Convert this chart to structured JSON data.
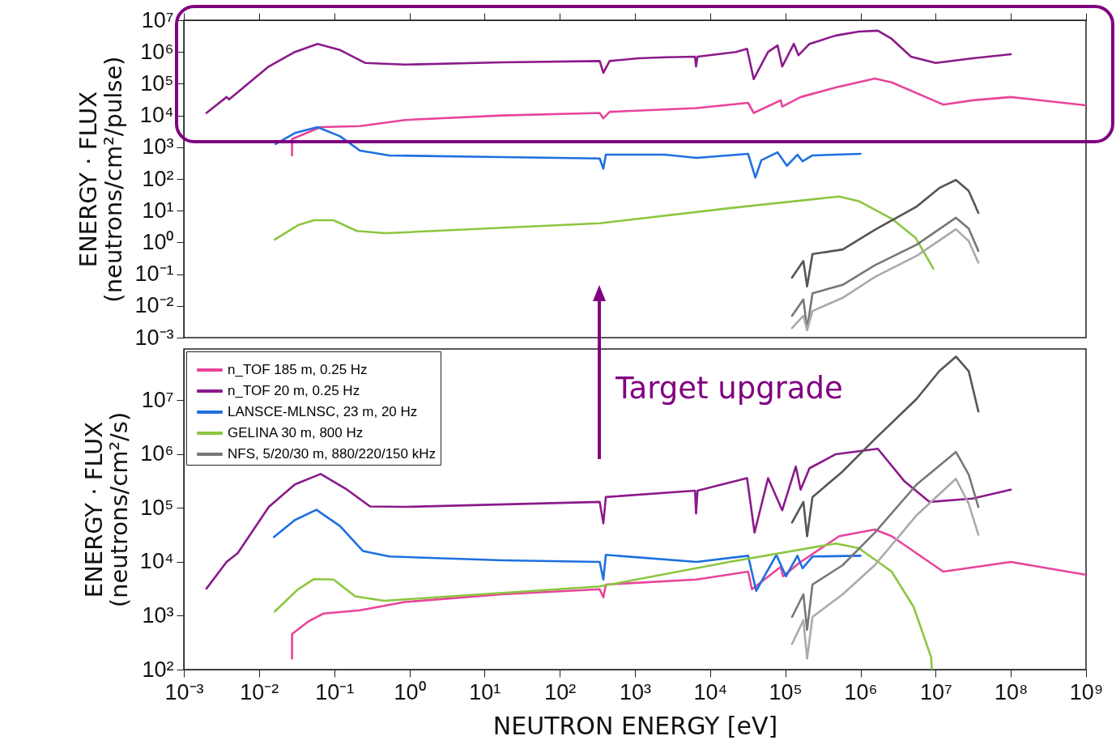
{
  "chart_data": [
    {
      "type": "line",
      "ylabel": "ENERGY · FLUX\n(neutrons/cm²/pulse)",
      "log": "xy",
      "tick_labels": "y",
      "xlim": [
        0.001,
        1000000000
      ],
      "ylim": [
        0.001,
        10000000
      ],
      "xticks": [
        {
          "value": 0.001,
          "label": null
        },
        {
          "value": 0.01,
          "label": null
        },
        {
          "value": 0.1,
          "label": null
        },
        {
          "value": 1,
          "label": null
        },
        {
          "value": 10,
          "label": null
        },
        {
          "value": 100,
          "label": null
        },
        {
          "value": 1000,
          "label": null
        },
        {
          "value": 10000,
          "label": null
        },
        {
          "value": 100000,
          "label": null
        },
        {
          "value": 1000000,
          "label": null
        },
        {
          "value": 10000000,
          "label": null
        },
        {
          "value": 100000000,
          "label": null
        },
        {
          "value": 1000000000,
          "label": null
        }
      ],
      "yticks": [
        {
          "value": 0.001,
          "label": "10⁻³"
        },
        {
          "value": 0.01,
          "label": "10⁻²"
        },
        {
          "value": 0.1,
          "label": "10⁻¹"
        },
        {
          "value": 1,
          "label": "10⁰"
        },
        {
          "value": 10,
          "label": "10¹"
        },
        {
          "value": 100,
          "label": "10²"
        },
        {
          "value": 1000,
          "label": "10³"
        },
        {
          "value": 10000,
          "label": "10⁴"
        },
        {
          "value": 100000,
          "label": "10⁵"
        },
        {
          "value": 1000000,
          "label": "10⁶"
        },
        {
          "value": 10000000,
          "label": "10⁷"
        }
      ],
      "series": [
        {
          "color": "#e8449a",
          "x": [
            0.0275,
            0.0275,
            0.066,
            0.22,
            0.87,
            17,
            340,
            380,
            460,
            6600,
            32000,
            38000,
            87000,
            91000,
            160000,
            470000,
            1550000,
            2600000,
            12600000,
            31000000,
            100000000,
            980000000
          ],
          "values": [
            550,
            1800,
            4300,
            4600,
            7200,
            10000,
            12000,
            8100,
            13000,
            17000,
            25000,
            12000,
            30000,
            19000,
            38000,
            76000,
            145000,
            110000,
            22000,
            30000,
            38000,
            21000
          ]
        },
        {
          "color": "#8b1a8b",
          "x": [
            0.002,
            0.0037,
            0.004,
            0.0052,
            0.0135,
            0.03,
            0.06,
            0.12,
            0.26,
            0.87,
            17,
            340,
            380,
            460,
            1100,
            2500,
            6300,
            6500,
            6800,
            22000,
            31000,
            38000,
            59000,
            79000,
            91000,
            130000,
            150000,
            210000,
            470000,
            950000,
            1700000,
            2600000,
            4700000,
            10000000,
            31000000,
            100000000
          ],
          "values": [
            12000,
            38000,
            32000,
            54000,
            350000,
            1000000,
            1800000,
            1150000,
            450000,
            400000,
            470000,
            520000,
            220000,
            520000,
            630000,
            680000,
            710000,
            350000,
            710000,
            1000000,
            1260000,
            140000,
            1000000,
            1600000,
            350000,
            1800000,
            790000,
            1800000,
            3300000,
            4400000,
            4700000,
            2600000,
            710000,
            450000,
            630000,
            850000
          ]
        },
        {
          "color": "#1e6fe0",
          "x": [
            0.0166,
            0.03,
            0.06,
            0.12,
            0.22,
            0.54,
            17,
            340,
            380,
            410,
            2500,
            6600,
            32000,
            40000,
            48000,
            79000,
            105000,
            145000,
            170000,
            230000,
            1000000
          ],
          "values": [
            1260,
            2800,
            4300,
            2200,
            780,
            550,
            490,
            440,
            210,
            580,
            580,
            460,
            620,
            110,
            390,
            690,
            260,
            580,
            360,
            550,
            620
          ]
        },
        {
          "color": "#8cc63f",
          "x": [
            0.0162,
            0.033,
            0.054,
            0.098,
            0.2,
            0.48,
            340,
            18000,
            520000,
            950000,
            2600000,
            5400000,
            9300000
          ],
          "values": [
            1.23,
            3.5,
            5,
            5,
            2.3,
            1.95,
            4,
            12,
            28,
            20,
            5.6,
            1.4,
            0.15
          ]
        },
        {
          "color": "#555555",
          "x": [
            123000,
            174000,
            195000,
            230000,
            580000,
            1550000,
            5600000,
            11200000,
            18600000,
            27500000,
            37000000
          ],
          "values": [
            0.078,
            0.26,
            0.041,
            0.43,
            0.6,
            2.5,
            13.5,
            52,
            93,
            42,
            8.5
          ]
        },
        {
          "color": "#777777",
          "x": [
            123000,
            174000,
            195000,
            230000,
            580000,
            1550000,
            5600000,
            18600000,
            27500000,
            37000000
          ],
          "values": [
            0.0049,
            0.016,
            0.0019,
            0.025,
            0.046,
            0.19,
            0.85,
            6,
            2.75,
            0.54
          ]
        },
        {
          "color": "#aaaaaa",
          "x": [
            123000,
            174000,
            195000,
            230000,
            580000,
            1550000,
            5600000,
            18600000,
            27500000,
            37000000
          ],
          "values": [
            0.002,
            0.0049,
            0.0017,
            0.0069,
            0.018,
            0.081,
            0.38,
            2.6,
            1.1,
            0.23
          ]
        }
      ]
    },
    {
      "type": "line",
      "ylabel": "ENERGY · FLUX\n(neutrons/cm²/s)",
      "xlabel": "NEUTRON ENERGY [eV]",
      "log": "xy",
      "legend": "top left",
      "annotations": [
        "Target upgrade"
      ],
      "xlim": [
        0.001,
        1000000000
      ],
      "ylim": [
        100,
        90000000
      ],
      "xticks": [
        {
          "value": 0.001,
          "label": "10⁻³"
        },
        {
          "value": 0.01,
          "label": "10⁻²"
        },
        {
          "value": 0.1,
          "label": "10⁻¹"
        },
        {
          "value": 1,
          "label": "10⁰"
        },
        {
          "value": 10,
          "label": "10¹"
        },
        {
          "value": 100,
          "label": "10²"
        },
        {
          "value": 1000,
          "label": "10³"
        },
        {
          "value": 10000,
          "label": "10⁴"
        },
        {
          "value": 100000,
          "label": "10⁵"
        },
        {
          "value": 1000000,
          "label": "10⁶"
        },
        {
          "value": 10000000,
          "label": "10⁷"
        },
        {
          "value": 100000000,
          "label": "10⁸"
        },
        {
          "value": 1000000000,
          "label": "10⁹"
        }
      ],
      "yticks": [
        {
          "value": 100,
          "label": "10²"
        },
        {
          "value": 1000,
          "label": "10³"
        },
        {
          "value": 10000,
          "label": "10⁴"
        },
        {
          "value": 100000,
          "label": "10⁵"
        },
        {
          "value": 1000000,
          "label": "10⁶"
        },
        {
          "value": 10000000,
          "label": "10⁷"
        }
      ],
      "series": [
        {
          "name": "n_TOF 185 m, 0.25 Hz",
          "color": "#e8449a",
          "x": [
            0.0275,
            0.0275,
            0.045,
            0.072,
            0.22,
            0.87,
            17,
            340,
            380,
            410,
            6600,
            32000,
            36000,
            87000,
            93000,
            160000,
            520000,
            1550000,
            2600000,
            12600000,
            100000000,
            980000000
          ],
          "values": [
            160,
            460,
            780,
            1100,
            1260,
            1800,
            2500,
            3100,
            2200,
            3800,
            4700,
            6600,
            3100,
            8100,
            5400,
            10000,
            30000,
            40000,
            30000,
            6600,
            10000,
            5800
          ]
        },
        {
          "name": "n_TOF 20 m, 0.25 Hz",
          "color": "#8b1a8b",
          "x": [
            0.002,
            0.0037,
            0.0052,
            0.0135,
            0.03,
            0.066,
            0.148,
            0.3,
            0.87,
            340,
            380,
            410,
            6300,
            6500,
            6800,
            31000,
            39000,
            59000,
            91000,
            138000,
            160000,
            210000,
            470000,
            1700000,
            3800000,
            8300000,
            31000000,
            100000000
          ],
          "values": [
            3200,
            10000,
            14500,
            105000,
            275000,
            430000,
            220000,
            107000,
            105000,
            130000,
            52000,
            160000,
            210000,
            79000,
            210000,
            360000,
            35000,
            360000,
            91000,
            590000,
            220000,
            550000,
            1000000,
            1260000,
            320000,
            130000,
            150000,
            220000
          ]
        },
        {
          "name": "LANSCE-MLNSC, 23 m, 20 Hz",
          "color": "#1e6fe0",
          "x": [
            0.0158,
            0.03,
            0.058,
            0.12,
            0.24,
            0.54,
            17,
            340,
            380,
            410,
            6600,
            32000,
            41000,
            76000,
            102000,
            145000,
            170000,
            230000,
            1000000
          ],
          "values": [
            29000,
            60000,
            93000,
            46000,
            16000,
            12600,
            10700,
            10000,
            4700,
            13500,
            10000,
            13000,
            2900,
            13500,
            5400,
            13000,
            7600,
            12600,
            13000
          ]
        },
        {
          "name": "GELINA 30 m, 800 Hz",
          "color": "#8cc63f",
          "x": [
            0.0162,
            0.033,
            0.054,
            0.098,
            0.19,
            0.46,
            340,
            18000,
            470000,
            950000,
            2600000,
            5100000,
            8700000,
            8900000
          ],
          "values": [
            1200,
            3100,
            4800,
            4700,
            2300,
            1900,
            3500,
            10000,
            22000,
            18000,
            6600,
            1450,
            170,
            100
          ]
        },
        {
          "color": "#555555",
          "x": [
            123000,
            174000,
            195000,
            230000,
            580000,
            1550000,
            5600000,
            11200000,
            18600000,
            27500000,
            37000000
          ],
          "values": [
            54000,
            130000,
            30000,
            160000,
            480000,
            1900000,
            10700000,
            35000000,
            65000000,
            35000000,
            6200000
          ]
        },
        {
          "name": "NFS, 5/20/30 m, 880/220/150 kHz",
          "color": "#777777",
          "x": [
            123000,
            174000,
            195000,
            230000,
            580000,
            1550000,
            5600000,
            18600000,
            27500000,
            37000000
          ],
          "values": [
            950,
            2500,
            550,
            3800,
            8700,
            35000,
            275000,
            1100000,
            420000,
            105000
          ]
        },
        {
          "color": "#aaaaaa",
          "x": [
            123000,
            174000,
            195000,
            230000,
            580000,
            1550000,
            5600000,
            18600000,
            27500000,
            37000000
          ],
          "values": [
            300,
            830,
            160,
            950,
            2500,
            8700,
            74000,
            350000,
            120000,
            32000
          ]
        }
      ]
    }
  ]
}
